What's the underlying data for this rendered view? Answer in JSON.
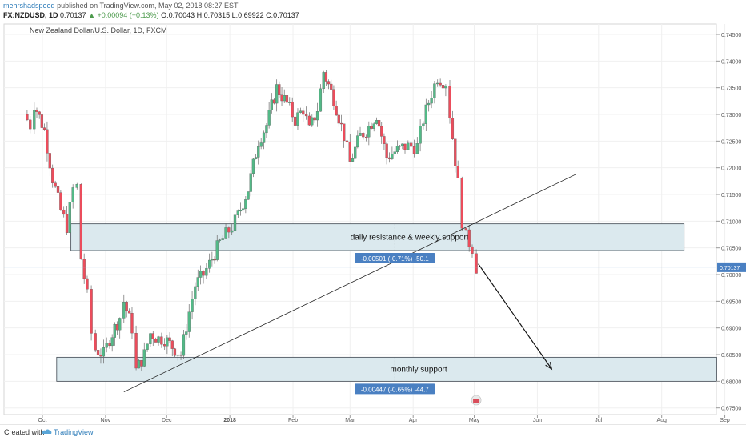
{
  "header": {
    "author": "mehrshadspeed",
    "published": "published on TradingView.com, May 02, 2018 08:27 EST",
    "symbol_line": "FX:NZDUSD, 1D",
    "last": "0.70137",
    "change": "▲ +0.00094 (+0.13%)",
    "ohlc": "O:0.70043 H:0.70315 L:0.69922 C:0.70137"
  },
  "chart_data": {
    "type": "candlestick",
    "title": "New Zealand Dollar/U.S. Dollar, 1D, FXCM",
    "x_ticks": [
      "Oct",
      "Nov",
      "Dec",
      "2018",
      "Feb",
      "Mar",
      "Apr",
      "May",
      "Jun",
      "Jul",
      "Aug",
      "Sep"
    ],
    "y_ticks": [
      "0.74500",
      "0.74000",
      "0.73500",
      "0.73000",
      "0.72500",
      "0.72000",
      "0.71500",
      "0.71000",
      "0.70500",
      "0.70000",
      "0.69500",
      "0.69000",
      "0.68500",
      "0.68000",
      "0.67500"
    ],
    "ylim": [
      0.6745,
      0.7465
    ],
    "last_price_label": "0.70137",
    "close_path": [
      [
        "2017-09-22",
        0.73
      ],
      [
        "2017-09-25",
        0.728
      ],
      [
        "2017-09-27",
        0.732
      ],
      [
        "2017-10-02",
        0.727
      ],
      [
        "2017-10-06",
        0.718
      ],
      [
        "2017-10-10",
        0.712
      ],
      [
        "2017-10-13",
        0.709
      ],
      [
        "2017-10-16",
        0.716
      ],
      [
        "2017-10-18",
        0.7165
      ],
      [
        "2017-10-20",
        0.703
      ],
      [
        "2017-10-23",
        0.696
      ],
      [
        "2017-10-25",
        0.689
      ],
      [
        "2017-10-27",
        0.686
      ],
      [
        "2017-10-31",
        0.685
      ],
      [
        "2017-11-03",
        0.688
      ],
      [
        "2017-11-08",
        0.692
      ],
      [
        "2017-11-10",
        0.695
      ],
      [
        "2017-11-14",
        0.69
      ],
      [
        "2017-11-16",
        0.682
      ],
      [
        "2017-11-20",
        0.685
      ],
      [
        "2017-11-23",
        0.689
      ],
      [
        "2017-11-27",
        0.688
      ],
      [
        "2017-11-30",
        0.688
      ],
      [
        "2017-12-05",
        0.686
      ],
      [
        "2017-12-08",
        0.685
      ],
      [
        "2017-12-12",
        0.693
      ],
      [
        "2017-12-15",
        0.698
      ],
      [
        "2017-12-19",
        0.7
      ],
      [
        "2017-12-22",
        0.702
      ],
      [
        "2017-12-27",
        0.706
      ],
      [
        "2018-01-02",
        0.709
      ],
      [
        "2018-01-05",
        0.711
      ],
      [
        "2018-01-10",
        0.716
      ],
      [
        "2018-01-15",
        0.725
      ],
      [
        "2018-01-19",
        0.728
      ],
      [
        "2018-01-24",
        0.735
      ],
      [
        "2018-01-29",
        0.732
      ],
      [
        "2018-02-02",
        0.729
      ],
      [
        "2018-02-06",
        0.731
      ],
      [
        "2018-02-09",
        0.727
      ],
      [
        "2018-02-13",
        0.731
      ],
      [
        "2018-02-16",
        0.738
      ],
      [
        "2018-02-21",
        0.733
      ],
      [
        "2018-02-26",
        0.726
      ],
      [
        "2018-03-01",
        0.721
      ],
      [
        "2018-03-06",
        0.726
      ],
      [
        "2018-03-09",
        0.727
      ],
      [
        "2018-03-14",
        0.73
      ],
      [
        "2018-03-19",
        0.722
      ],
      [
        "2018-03-23",
        0.723
      ],
      [
        "2018-03-28",
        0.724
      ],
      [
        "2018-04-03",
        0.724
      ],
      [
        "2018-04-06",
        0.729
      ],
      [
        "2018-04-10",
        0.734
      ],
      [
        "2018-04-13",
        0.737
      ],
      [
        "2018-04-17",
        0.736
      ],
      [
        "2018-04-19",
        0.73
      ],
      [
        "2018-04-23",
        0.717
      ],
      [
        "2018-04-25",
        0.71
      ],
      [
        "2018-04-27",
        0.707
      ],
      [
        "2018-04-30",
        0.705
      ],
      [
        "2018-05-02",
        0.70137
      ]
    ],
    "zones": [
      {
        "label": "daily resistance & weekly support",
        "from": "2017-10-15",
        "to": "2018-08-12",
        "low": 0.7045,
        "high": 0.7095
      },
      {
        "label": "monthly support",
        "from": "2017-10-08",
        "to": "2018-08-28",
        "low": 0.68,
        "high": 0.6845
      }
    ],
    "measures": [
      {
        "label": "-0.00501 (-0.71%) -50.1",
        "date": "2018-03-23"
      },
      {
        "label": "-0.00447 (-0.65%) -44.7",
        "date": "2018-03-23"
      }
    ],
    "trendline": {
      "from": [
        "2017-11-10",
        0.678
      ],
      "to": [
        "2018-06-20",
        0.7188
      ]
    },
    "arrow": {
      "from": [
        "2018-05-03",
        0.702
      ],
      "to": [
        "2018-06-08",
        0.6823
      ]
    },
    "colors": {
      "up": "#53b987",
      "down": "#eb4d5c",
      "zone": "#dbe9ee",
      "label_bg": "#4a80c2",
      "price_bg": "#4a80c2"
    }
  },
  "footer": {
    "created_with": "Created with",
    "brand": "TradingView"
  }
}
